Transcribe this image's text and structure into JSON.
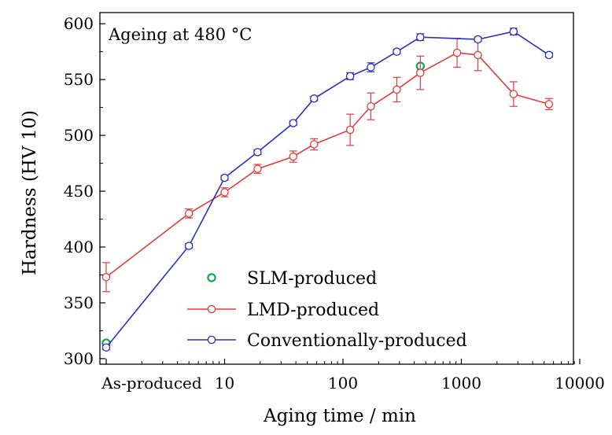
{
  "chart_data": {
    "type": "line",
    "annotation": "Ageing at 480 °C",
    "xlabel": "Aging time / min",
    "ylabel": "Hardness (HV 10)",
    "x_scale": "log, with the as-produced state plotted at the left end of the axis",
    "xlim": [
      1,
      10000
    ],
    "ylim": [
      295,
      610
    ],
    "x_ticks": [
      {
        "value": 1,
        "label": "As-produced"
      },
      {
        "value": 10,
        "label": "10"
      },
      {
        "value": 100,
        "label": "100"
      },
      {
        "value": 1000,
        "label": "1000"
      },
      {
        "value": 10000,
        "label": "10000"
      }
    ],
    "y_ticks": [
      300,
      350,
      400,
      450,
      500,
      550,
      600
    ],
    "grid": false,
    "legend_position": "bottom-center",
    "series": [
      {
        "name": "SLM-produced",
        "color": "#11a84a",
        "marker": "open-circle",
        "line": false,
        "points": [
          {
            "x": 1,
            "y": 314,
            "err": 0
          },
          {
            "x": 450,
            "y": 562,
            "err": 0
          }
        ]
      },
      {
        "name": "LMD-produced",
        "color": "#e03c3c",
        "marker": "open-circle",
        "line": true,
        "points": [
          {
            "x": 1,
            "y": 373,
            "err": 13
          },
          {
            "x": 5,
            "y": 430,
            "err": 4
          },
          {
            "x": 10,
            "y": 449,
            "err": 4
          },
          {
            "x": 19,
            "y": 470,
            "err": 4
          },
          {
            "x": 38,
            "y": 481,
            "err": 5
          },
          {
            "x": 57,
            "y": 492,
            "err": 5
          },
          {
            "x": 115,
            "y": 505,
            "err": 14
          },
          {
            "x": 172,
            "y": 526,
            "err": 12
          },
          {
            "x": 285,
            "y": 541,
            "err": 11
          },
          {
            "x": 450,
            "y": 556,
            "err": 15
          },
          {
            "x": 920,
            "y": 574,
            "err": 13
          },
          {
            "x": 1380,
            "y": 572,
            "err": 14
          },
          {
            "x": 2760,
            "y": 537,
            "err": 11
          },
          {
            "x": 5500,
            "y": 528,
            "err": 5
          }
        ]
      },
      {
        "name": "Conventionally-produced",
        "color": "#2b2fc0",
        "marker": "open-circle",
        "line": true,
        "points": [
          {
            "x": 1,
            "y": 310,
            "err": 2
          },
          {
            "x": 5,
            "y": 401,
            "err": 2
          },
          {
            "x": 10,
            "y": 462,
            "err": 2
          },
          {
            "x": 19,
            "y": 485,
            "err": 2
          },
          {
            "x": 38,
            "y": 511,
            "err": 2
          },
          {
            "x": 57,
            "y": 533,
            "err": 2
          },
          {
            "x": 115,
            "y": 553,
            "err": 3
          },
          {
            "x": 172,
            "y": 561,
            "err": 4
          },
          {
            "x": 285,
            "y": 575,
            "err": 2
          },
          {
            "x": 450,
            "y": 588,
            "err": 3
          },
          {
            "x": 1380,
            "y": 586,
            "err": 2
          },
          {
            "x": 2760,
            "y": 593,
            "err": 3
          },
          {
            "x": 5500,
            "y": 572,
            "err": 2
          }
        ]
      }
    ]
  }
}
